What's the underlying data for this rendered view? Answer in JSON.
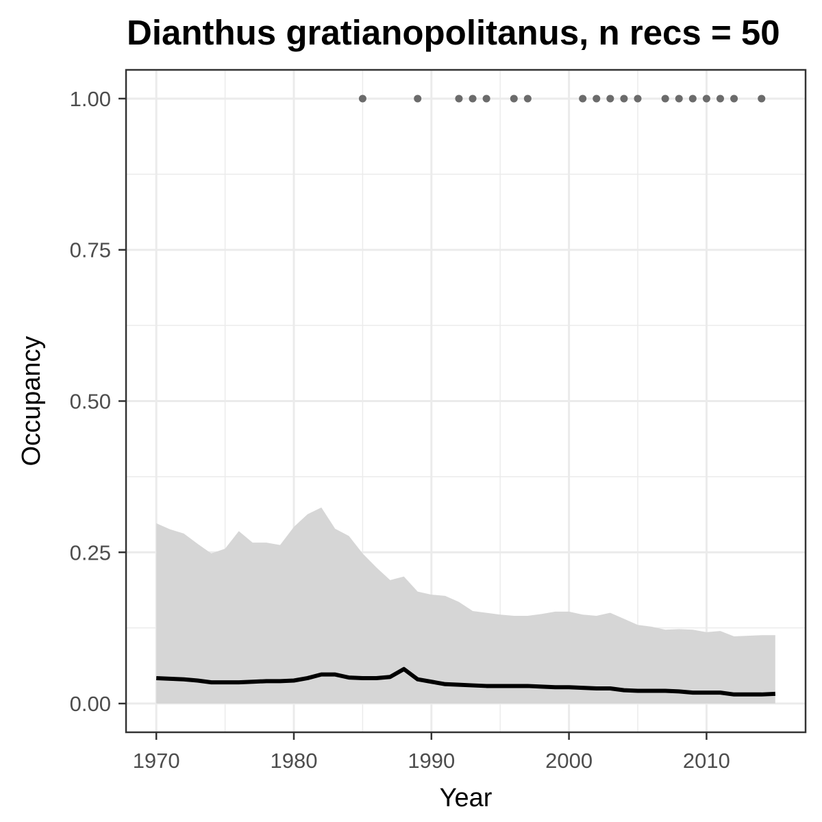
{
  "chart_data": {
    "type": "line",
    "title": "Dianthus gratianopolitanus, n recs = 50",
    "xlabel": "Year",
    "ylabel": "Occupancy",
    "xlim": [
      1967.8,
      2017.2
    ],
    "ylim": [
      -0.0475,
      1.0475
    ],
    "x_ticks": [
      1970,
      1980,
      1990,
      2000,
      2010
    ],
    "x_tick_labels": [
      "1970",
      "1980",
      "1990",
      "2000",
      "2010"
    ],
    "y_ticks": [
      0,
      0.25,
      0.5,
      0.75,
      1.0
    ],
    "y_tick_labels": [
      "0.00",
      "0.25",
      "0.50",
      "0.75",
      "1.00"
    ],
    "grid": true,
    "legend": "none",
    "colors": {
      "line": "#000000",
      "ribbon": "#d6d6d6",
      "points": "#6b6b6b",
      "grid": "#ebebeb",
      "panel_border": "#333333"
    },
    "series": [
      {
        "type": "ribbon",
        "x": [
          1970,
          1971,
          1972,
          1973,
          1974,
          1975,
          1976,
          1977,
          1978,
          1979,
          1980,
          1981,
          1982,
          1983,
          1984,
          1985,
          1986,
          1987,
          1988,
          1989,
          1990,
          1991,
          1992,
          1993,
          1994,
          1995,
          1996,
          1997,
          1998,
          1999,
          2000,
          2001,
          2002,
          2003,
          2004,
          2005,
          2006,
          2007,
          2008,
          2009,
          2010,
          2011,
          2012,
          2013,
          2014,
          2015
        ],
        "lower": [
          0,
          0,
          0,
          0,
          0,
          0,
          0,
          0,
          0,
          0,
          0,
          0,
          0,
          0,
          0,
          0,
          0,
          0,
          0,
          0,
          0,
          0,
          0,
          0,
          0,
          0,
          0,
          0,
          0,
          0,
          0,
          0,
          0,
          0,
          0,
          0,
          0,
          0,
          0,
          0,
          0,
          0,
          0,
          0,
          0,
          0
        ],
        "upper": [
          0.298,
          0.288,
          0.281,
          0.264,
          0.248,
          0.256,
          0.285,
          0.266,
          0.266,
          0.262,
          0.292,
          0.313,
          0.324,
          0.289,
          0.277,
          0.248,
          0.225,
          0.204,
          0.21,
          0.185,
          0.18,
          0.178,
          0.168,
          0.153,
          0.15,
          0.147,
          0.145,
          0.145,
          0.148,
          0.152,
          0.152,
          0.147,
          0.145,
          0.15,
          0.14,
          0.13,
          0.127,
          0.122,
          0.123,
          0.122,
          0.118,
          0.12,
          0.111,
          0.112,
          0.113,
          0.113
        ]
      },
      {
        "type": "line",
        "x": [
          1970,
          1971,
          1972,
          1973,
          1974,
          1975,
          1976,
          1977,
          1978,
          1979,
          1980,
          1981,
          1982,
          1983,
          1984,
          1985,
          1986,
          1987,
          1988,
          1989,
          1990,
          1991,
          1992,
          1993,
          1994,
          1995,
          1996,
          1997,
          1998,
          1999,
          2000,
          2001,
          2002,
          2003,
          2004,
          2005,
          2006,
          2007,
          2008,
          2009,
          2010,
          2011,
          2012,
          2013,
          2014,
          2015
        ],
        "y": [
          0.042,
          0.041,
          0.04,
          0.038,
          0.035,
          0.035,
          0.035,
          0.036,
          0.037,
          0.037,
          0.038,
          0.042,
          0.048,
          0.048,
          0.043,
          0.042,
          0.042,
          0.044,
          0.057,
          0.04,
          0.036,
          0.032,
          0.031,
          0.03,
          0.029,
          0.029,
          0.029,
          0.029,
          0.028,
          0.027,
          0.027,
          0.026,
          0.025,
          0.025,
          0.022,
          0.021,
          0.021,
          0.021,
          0.02,
          0.018,
          0.018,
          0.018,
          0.015,
          0.015,
          0.015,
          0.016
        ]
      },
      {
        "type": "points",
        "x": [
          1985,
          1989,
          1992,
          1993,
          1994,
          1996,
          1997,
          2001,
          2002,
          2003,
          2004,
          2005,
          2007,
          2008,
          2009,
          2010,
          2011,
          2012,
          2014
        ],
        "y": [
          1,
          1,
          1,
          1,
          1,
          1,
          1,
          1,
          1,
          1,
          1,
          1,
          1,
          1,
          1,
          1,
          1,
          1,
          1
        ]
      }
    ]
  }
}
